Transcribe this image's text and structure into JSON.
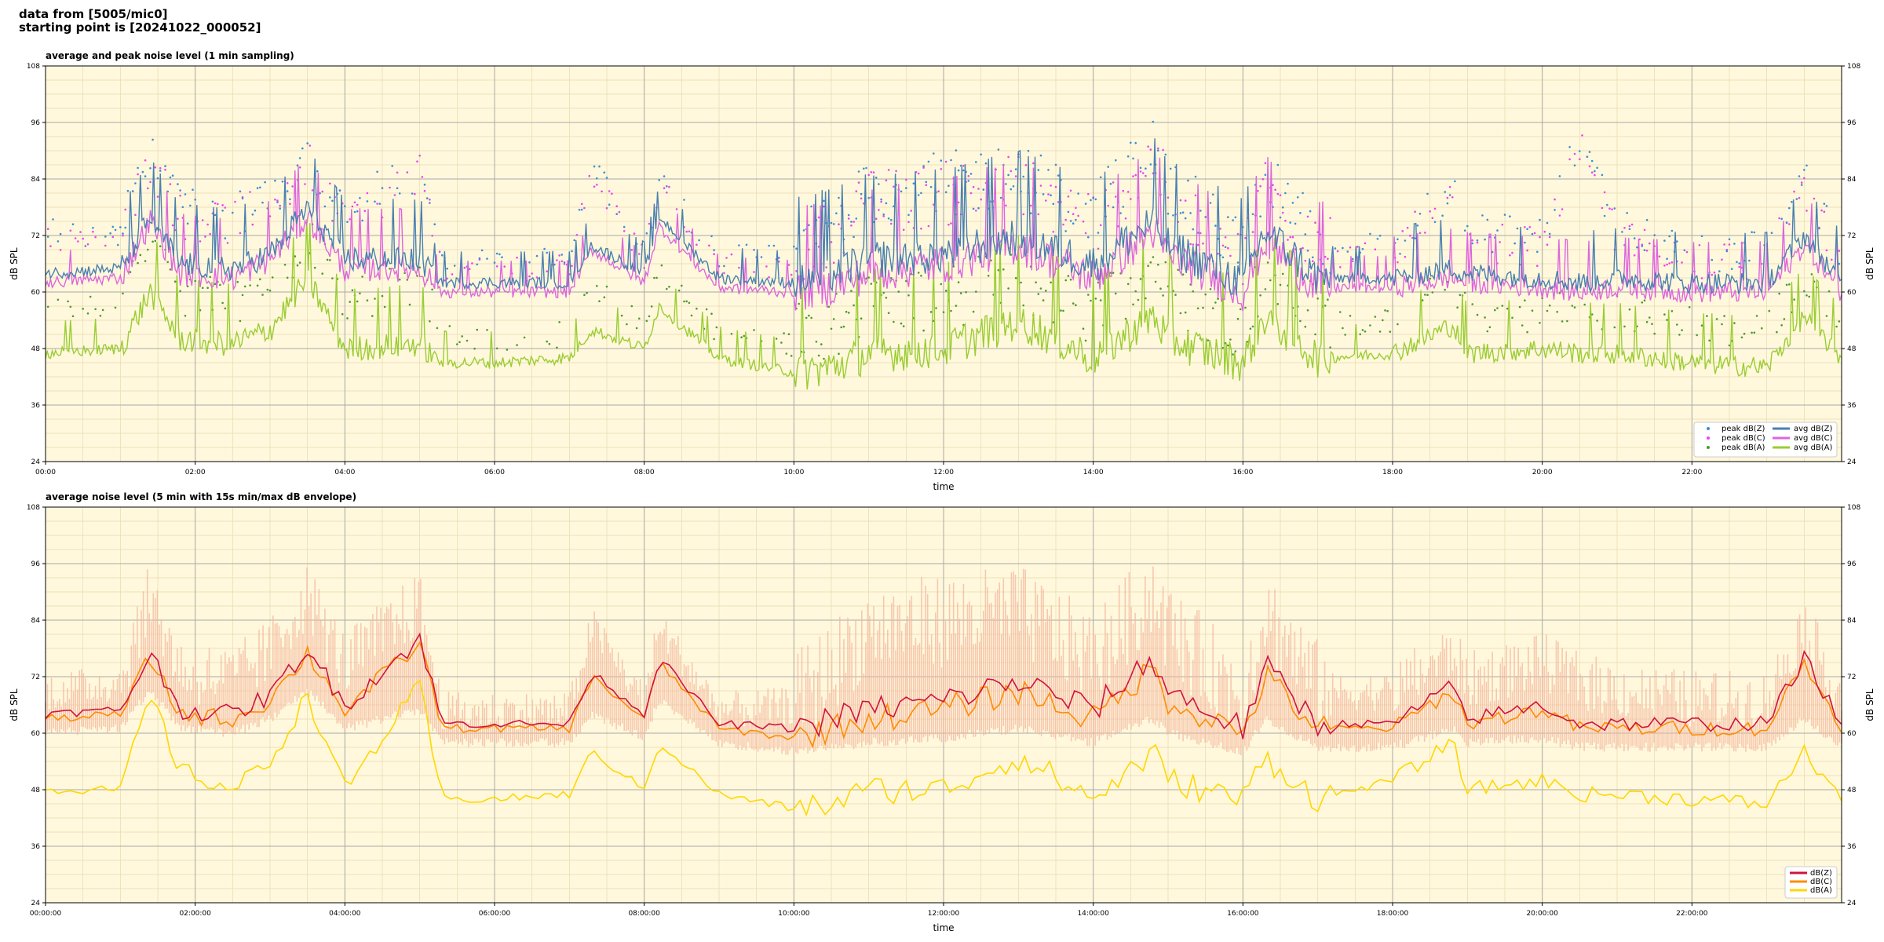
{
  "header": {
    "line1": "data from [5005/mic0]",
    "line2": "starting point is [20241022_000052]"
  },
  "chart_data": [
    {
      "type": "scatter+line",
      "title": "average and peak noise level (1 min sampling)",
      "xlabel": "time",
      "ylabel": "dB SPL",
      "xlim": [
        0,
        24
      ],
      "ylim": [
        24,
        108
      ],
      "yticks": [
        24,
        36,
        48,
        60,
        72,
        84,
        96,
        108
      ],
      "xtick_labels": [
        "00:00",
        "02:00",
        "04:00",
        "06:00",
        "08:00",
        "10:00",
        "12:00",
        "14:00",
        "16:00",
        "18:00",
        "20:00",
        "22:00"
      ],
      "grid": true,
      "legend_position": "bottom-right",
      "legend": [
        "peak dB(Z)",
        "peak dB(C)",
        "peak dB(A)",
        "avg dB(Z)",
        "avg dB(C)",
        "avg dB(A)"
      ],
      "colors": {
        "peak_z": "#3a8fd6",
        "peak_c": "#ee44ee",
        "peak_a": "#4a9a30",
        "avg_z": "#4a7fb0",
        "avg_c": "#dd66dd",
        "avg_a": "#9acd32"
      },
      "x_hours": [
        0,
        1,
        1.4,
        1.8,
        2.5,
        3,
        3.5,
        4,
        5,
        5.3,
        6,
        7,
        7.3,
        8,
        8.2,
        9,
        10,
        10.5,
        11,
        12,
        13,
        14,
        14.8,
        15,
        16,
        16.3,
        17,
        18,
        18.8,
        19,
        20,
        20.5,
        21,
        22,
        23,
        23.5,
        24
      ],
      "series": [
        {
          "name": "avg dB(Z)",
          "values": [
            64,
            65,
            76,
            66,
            65,
            68,
            78,
            67,
            67,
            62,
            62,
            62,
            70,
            64,
            76,
            63,
            62,
            64,
            67,
            68,
            72,
            66,
            75,
            70,
            62,
            73,
            63,
            63,
            65,
            64,
            63,
            62,
            63,
            62,
            62,
            72,
            62
          ]
        },
        {
          "name": "avg dB(C)",
          "values": [
            62,
            63,
            75,
            64,
            63,
            67,
            76,
            65,
            65,
            60,
            60,
            60,
            69,
            62,
            74,
            61,
            60,
            61,
            64,
            66,
            70,
            63,
            73,
            68,
            60,
            71,
            61,
            61,
            63,
            62,
            61,
            60,
            61,
            60,
            60,
            70,
            60
          ]
        },
        {
          "name": "avg dB(A)",
          "values": [
            47,
            48,
            60,
            50,
            49,
            52,
            63,
            48,
            49,
            45,
            45,
            46,
            52,
            48,
            57,
            46,
            43,
            44,
            47,
            48,
            54,
            46,
            55,
            50,
            45,
            55,
            46,
            47,
            53,
            47,
            48,
            47,
            47,
            45,
            44,
            55,
            46
          ]
        },
        {
          "name": "peak dB(Z)",
          "values": [
            72,
            70,
            88,
            75,
            74,
            77,
            86,
            75,
            84,
            66,
            65,
            66,
            86,
            68,
            84,
            66,
            67,
            72,
            78,
            80,
            82,
            74,
            88,
            80,
            66,
            82,
            68,
            69,
            80,
            71,
            70,
            91,
            72,
            66,
            67,
            82,
            66
          ]
        },
        {
          "name": "peak dB(C)",
          "values": [
            70,
            69,
            86,
            74,
            73,
            76,
            85,
            73,
            82,
            64,
            64,
            64,
            84,
            66,
            82,
            64,
            65,
            70,
            76,
            78,
            80,
            72,
            86,
            78,
            64,
            80,
            66,
            67,
            78,
            69,
            68,
            89,
            70,
            64,
            65,
            80,
            64
          ]
        },
        {
          "name": "peak dB(A)",
          "values": [
            55,
            56,
            72,
            58,
            56,
            60,
            70,
            56,
            60,
            50,
            49,
            50,
            60,
            52,
            64,
            50,
            48,
            50,
            55,
            56,
            60,
            52,
            64,
            57,
            50,
            62,
            52,
            53,
            60,
            53,
            54,
            55,
            54,
            51,
            50,
            62,
            51
          ]
        }
      ]
    },
    {
      "type": "line",
      "title": "average noise level (5 min with 15s min/max dB envelope)",
      "xlabel": "time",
      "ylabel": "dB SPL",
      "xlim": [
        0,
        24
      ],
      "ylim": [
        24,
        108
      ],
      "yticks": [
        24,
        36,
        48,
        60,
        72,
        84,
        96,
        108
      ],
      "xtick_labels": [
        "00:00:00",
        "02:00:00",
        "04:00:00",
        "06:00:00",
        "08:00:00",
        "10:00:00",
        "12:00:00",
        "14:00:00",
        "16:00:00",
        "18:00:00",
        "20:00:00",
        "22:00:00"
      ],
      "grid": true,
      "legend_position": "bottom-right",
      "legend": [
        "dB(Z)",
        "dB(C)",
        "dB(A)"
      ],
      "colors": {
        "z": "#d0143c",
        "c": "#ff8c00",
        "a": "#ffd700",
        "envelope": "#f4b8a0"
      },
      "x_hours": [
        0,
        1,
        1.4,
        1.8,
        2.5,
        3,
        3.5,
        4,
        5,
        5.3,
        6,
        7,
        7.3,
        8,
        8.2,
        9,
        10,
        10.5,
        11,
        12,
        13,
        14,
        14.8,
        15,
        16,
        16.3,
        17,
        18,
        18.8,
        19,
        20,
        20.5,
        21,
        22,
        23,
        23.5,
        24
      ],
      "series": [
        {
          "name": "dB(Z)",
          "values": [
            64,
            65,
            77,
            65,
            64,
            68,
            78,
            66,
            80,
            62,
            62,
            62,
            73,
            64,
            76,
            62,
            61,
            63,
            65,
            67,
            71,
            65,
            76,
            69,
            61,
            74,
            62,
            62,
            70,
            63,
            66,
            62,
            62,
            62,
            62,
            76,
            62
          ]
        },
        {
          "name": "dB(C)",
          "values": [
            63,
            64,
            76,
            64,
            63,
            67,
            77,
            65,
            79,
            61,
            61,
            61,
            72,
            63,
            75,
            61,
            59,
            61,
            63,
            65,
            69,
            63,
            74,
            67,
            60,
            72,
            61,
            61,
            69,
            62,
            65,
            61,
            61,
            61,
            61,
            75,
            61
          ]
        },
        {
          "name": "dB(A)",
          "values": [
            48,
            48,
            68,
            52,
            48,
            54,
            68,
            48,
            70,
            46,
            46,
            47,
            56,
            48,
            58,
            47,
            44,
            45,
            48,
            48,
            55,
            46,
            56,
            50,
            46,
            55,
            46,
            50,
            58,
            48,
            50,
            47,
            47,
            46,
            45,
            56,
            46
          ]
        },
        {
          "name": "envelope max",
          "values": [
            68,
            70,
            88,
            72,
            70,
            76,
            88,
            73,
            86,
            64,
            64,
            64,
            82,
            66,
            82,
            64,
            65,
            72,
            80,
            82,
            84,
            74,
            88,
            80,
            66,
            84,
            68,
            68,
            76,
            70,
            74,
            70,
            68,
            66,
            66,
            82,
            66
          ]
        },
        {
          "name": "envelope min",
          "values": [
            61,
            62,
            70,
            62,
            61,
            64,
            70,
            62,
            66,
            59,
            59,
            59,
            65,
            60,
            68,
            59,
            57,
            58,
            59,
            60,
            62,
            59,
            64,
            61,
            57,
            64,
            58,
            58,
            62,
            59,
            60,
            58,
            58,
            58,
            58,
            64,
            58
          ]
        }
      ]
    }
  ]
}
